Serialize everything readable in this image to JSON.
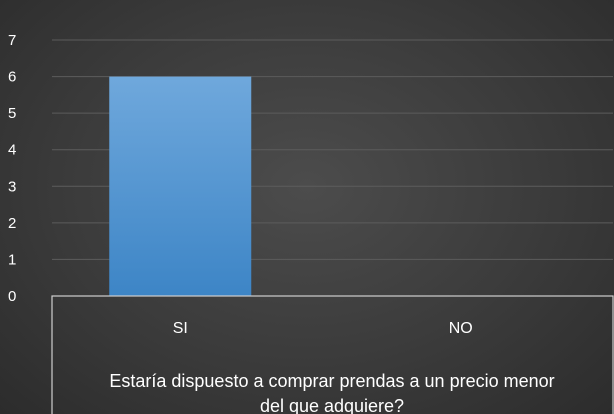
{
  "chart_data": {
    "type": "bar",
    "categories": [
      "SI",
      "NO"
    ],
    "values": [
      6,
      0
    ],
    "ylim": [
      0,
      7
    ],
    "yticks": [
      "0",
      "1",
      "2",
      "3",
      "4",
      "5",
      "6",
      "7"
    ],
    "xlabel": [
      "Estaría dispuesto a comprar prendas a un precio menor",
      "del que adquiere?"
    ],
    "grid": true,
    "legend": "none",
    "colors": {
      "bar_top": "#6fa8dc",
      "bar_bottom": "#3d85c6",
      "background": "#3b3b3b",
      "gridline": "#5c5c5c",
      "text": "#ffffff"
    }
  }
}
